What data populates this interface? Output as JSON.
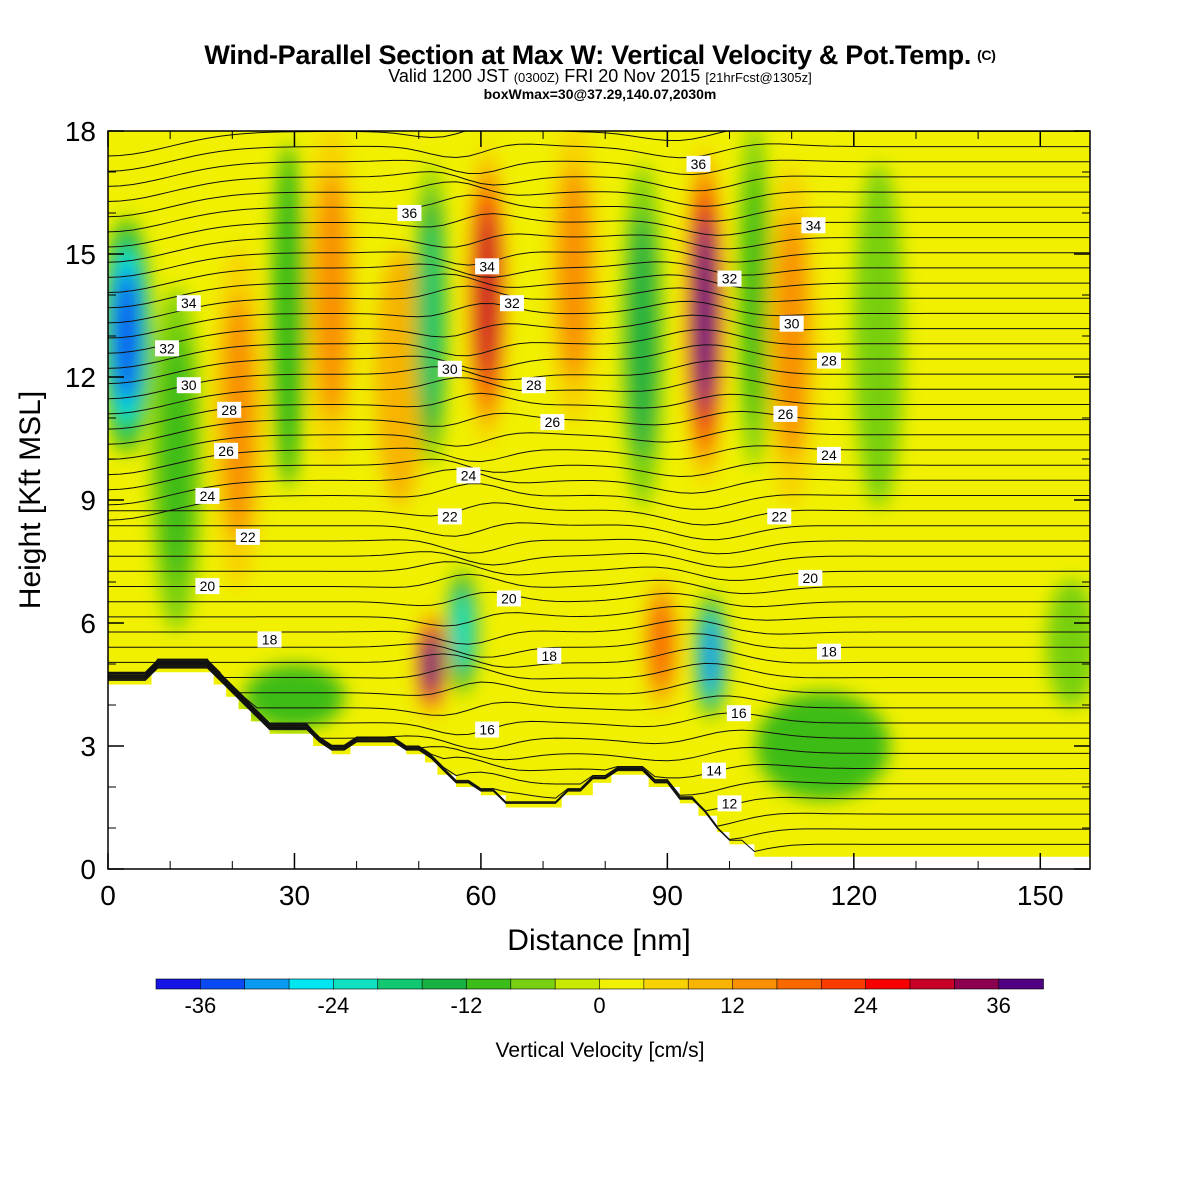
{
  "title": {
    "main": "Wind-Parallel Section at Max W: Vertical Velocity & Pot.Temp.",
    "copyright": "(C)",
    "valid_prefix": "Valid 1200 JST",
    "valid_utc": "(0300Z)",
    "valid_date": "FRI 20 Nov 2015",
    "forecast": "[21hrFcst@1305z]",
    "box_info": "boxWmax=30@37.29,140.07,2030m"
  },
  "chart_data": {
    "type": "heatmap",
    "xlabel": "Distance [nm]",
    "ylabel": "Height [Kft MSL]",
    "xlim": [
      0,
      158
    ],
    "ylim": [
      0,
      18
    ],
    "x_ticks": [
      0,
      30,
      60,
      90,
      120,
      150
    ],
    "y_ticks": [
      0,
      3,
      6,
      9,
      12,
      15,
      18
    ],
    "colorbar": {
      "title": "Vertical Velocity [cm/s]",
      "tick_labels": [
        "-36",
        "-24",
        "-12",
        "0",
        "12",
        "24",
        "36"
      ],
      "tick_values": [
        -36,
        -24,
        -12,
        0,
        12,
        24,
        36
      ],
      "range": [
        -40,
        40
      ],
      "step": 4,
      "colors": [
        "#1414e6",
        "#0a4af2",
        "#0a9af0",
        "#00e6f0",
        "#10e0c0",
        "#12c870",
        "#18b040",
        "#3cbc18",
        "#78d010",
        "#c8ea00",
        "#f0f000",
        "#f8d200",
        "#f8b400",
        "#f89000",
        "#f86800",
        "#f83c00",
        "#f80000",
        "#c80028",
        "#8c0050",
        "#500082"
      ]
    },
    "terrain_kft": [
      [
        0,
        4.5
      ],
      [
        7,
        4.5
      ],
      [
        7,
        4.8
      ],
      [
        17,
        4.8
      ],
      [
        17,
        4.5
      ],
      [
        19,
        4.5
      ],
      [
        19,
        4.2
      ],
      [
        21,
        4.2
      ],
      [
        21,
        3.9
      ],
      [
        23,
        3.9
      ],
      [
        23,
        3.6
      ],
      [
        26,
        3.6
      ],
      [
        26,
        3.3
      ],
      [
        33,
        3.3
      ],
      [
        33,
        3.0
      ],
      [
        36,
        3.0
      ],
      [
        36,
        2.8
      ],
      [
        39,
        2.8
      ],
      [
        39,
        3.0
      ],
      [
        48,
        3.0
      ],
      [
        48,
        2.8
      ],
      [
        51,
        2.8
      ],
      [
        51,
        2.6
      ],
      [
        53,
        2.6
      ],
      [
        53,
        2.3
      ],
      [
        56,
        2.3
      ],
      [
        56,
        2.0
      ],
      [
        60,
        2.0
      ],
      [
        60,
        1.8
      ],
      [
        64,
        1.8
      ],
      [
        64,
        1.5
      ],
      [
        73,
        1.5
      ],
      [
        73,
        1.8
      ],
      [
        78,
        1.8
      ],
      [
        78,
        2.1
      ],
      [
        81,
        2.1
      ],
      [
        81,
        2.3
      ],
      [
        87,
        2.3
      ],
      [
        87,
        2.0
      ],
      [
        92,
        2.0
      ],
      [
        92,
        1.6
      ],
      [
        95,
        1.6
      ],
      [
        95,
        1.3
      ],
      [
        98,
        1.3
      ],
      [
        98,
        0.9
      ],
      [
        100,
        0.9
      ],
      [
        100,
        0.6
      ],
      [
        104,
        0.6
      ],
      [
        104,
        0.3
      ],
      [
        158,
        0.3
      ]
    ],
    "vertical_velocity_features": [
      {
        "x": 3,
        "y": 13.0,
        "value": -34,
        "width_nm": 3.0,
        "height_kft": 5.5
      },
      {
        "x": 11,
        "y": 10.0,
        "value": -12,
        "width_nm": 3.0,
        "height_kft": 8.0
      },
      {
        "x": 21,
        "y": 11.0,
        "value": 14,
        "width_nm": 3.0,
        "height_kft": 8.0
      },
      {
        "x": 29,
        "y": 13.5,
        "value": -10,
        "width_nm": 2.0,
        "height_kft": 8.0
      },
      {
        "x": 36,
        "y": 14.0,
        "value": 13,
        "width_nm": 3.0,
        "height_kft": 8.0
      },
      {
        "x": 47,
        "y": 12.0,
        "value": 8,
        "width_nm": 3.0,
        "height_kft": 6.0
      },
      {
        "x": 52,
        "y": 13.5,
        "value": -20,
        "width_nm": 2.0,
        "height_kft": 7.0
      },
      {
        "x": 61,
        "y": 14.0,
        "value": 28,
        "width_nm": 2.5,
        "height_kft": 7.0
      },
      {
        "x": 57,
        "y": 5.8,
        "value": -24,
        "width_nm": 2.0,
        "height_kft": 3.0
      },
      {
        "x": 52,
        "y": 5.0,
        "value": 38,
        "width_nm": 2.0,
        "height_kft": 2.5
      },
      {
        "x": 75,
        "y": 14.5,
        "value": 12,
        "width_nm": 3.0,
        "height_kft": 7.0
      },
      {
        "x": 86,
        "y": 13.0,
        "value": -14,
        "width_nm": 2.5,
        "height_kft": 8.0
      },
      {
        "x": 96,
        "y": 13.5,
        "value": 36,
        "width_nm": 2.5,
        "height_kft": 8.0
      },
      {
        "x": 97,
        "y": 5.2,
        "value": -32,
        "width_nm": 2.0,
        "height_kft": 3.0
      },
      {
        "x": 89,
        "y": 5.5,
        "value": 16,
        "width_nm": 2.0,
        "height_kft": 3.0
      },
      {
        "x": 104,
        "y": 14.0,
        "value": -12,
        "width_nm": 2.0,
        "height_kft": 8.0
      },
      {
        "x": 110,
        "y": 13.0,
        "value": 13,
        "width_nm": 3.0,
        "height_kft": 8.0
      },
      {
        "x": 124,
        "y": 13.0,
        "value": -6,
        "width_nm": 3.0,
        "height_kft": 8.0
      },
      {
        "x": 155,
        "y": 5.5,
        "value": -8,
        "width_nm": 3.0,
        "height_kft": 3.0
      },
      {
        "x": 30,
        "y": 4.2,
        "value": -10,
        "width_nm": 6.0,
        "height_kft": 1.5
      },
      {
        "x": 115,
        "y": 3.0,
        "value": -9,
        "width_nm": 8.0,
        "height_kft": 2.5
      }
    ],
    "potential_temperature_labels": [
      {
        "label": "36",
        "x": 48.5,
        "y": 16.0
      },
      {
        "label": "36",
        "x": 95,
        "y": 17.2
      },
      {
        "label": "34",
        "x": 13,
        "y": 13.8
      },
      {
        "label": "34",
        "x": 61,
        "y": 14.7
      },
      {
        "label": "34",
        "x": 113.5,
        "y": 15.7
      },
      {
        "label": "32",
        "x": 9.5,
        "y": 12.7
      },
      {
        "label": "32",
        "x": 65,
        "y": 13.8
      },
      {
        "label": "32",
        "x": 100,
        "y": 14.4
      },
      {
        "label": "30",
        "x": 13,
        "y": 11.8
      },
      {
        "label": "30",
        "x": 55,
        "y": 12.2
      },
      {
        "label": "30",
        "x": 110,
        "y": 13.3
      },
      {
        "label": "28",
        "x": 19.5,
        "y": 11.2
      },
      {
        "label": "28",
        "x": 68.5,
        "y": 11.8
      },
      {
        "label": "28",
        "x": 116,
        "y": 12.4
      },
      {
        "label": "26",
        "x": 19,
        "y": 10.2
      },
      {
        "label": "26",
        "x": 71.5,
        "y": 10.9
      },
      {
        "label": "26",
        "x": 109,
        "y": 11.1
      },
      {
        "label": "24",
        "x": 16,
        "y": 9.1
      },
      {
        "label": "24",
        "x": 58,
        "y": 9.6
      },
      {
        "label": "24",
        "x": 116,
        "y": 10.1
      },
      {
        "label": "22",
        "x": 22.5,
        "y": 8.1
      },
      {
        "label": "22",
        "x": 55,
        "y": 8.6
      },
      {
        "label": "22",
        "x": 108,
        "y": 8.6
      },
      {
        "label": "20",
        "x": 16,
        "y": 6.9
      },
      {
        "label": "20",
        "x": 64.5,
        "y": 6.6
      },
      {
        "label": "20",
        "x": 113,
        "y": 7.1
      },
      {
        "label": "18",
        "x": 26,
        "y": 5.6
      },
      {
        "label": "18",
        "x": 71,
        "y": 5.2
      },
      {
        "label": "18",
        "x": 116,
        "y": 5.3
      },
      {
        "label": "16",
        "x": 61,
        "y": 3.4
      },
      {
        "label": "16",
        "x": 101.5,
        "y": 3.8
      },
      {
        "label": "14",
        "x": 97.5,
        "y": 2.4
      },
      {
        "label": "12",
        "x": 100,
        "y": 1.6
      }
    ]
  }
}
